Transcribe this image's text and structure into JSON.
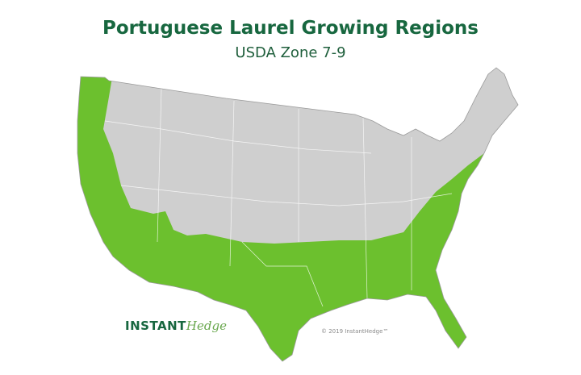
{
  "title": "Portuguese Laurel Growing Regions",
  "subtitle": "USDA Zone 7-9",
  "logo": {
    "part1": "INSTANT",
    "part2": "Hedge"
  },
  "copyright": "© 2019 InstantHedge™",
  "colors": {
    "growing_region": "#6cc02e",
    "non_growing": "#cfcfcf",
    "title": "#17673f"
  },
  "legend_meaning": {
    "green": "USDA Zone 7-9"
  }
}
